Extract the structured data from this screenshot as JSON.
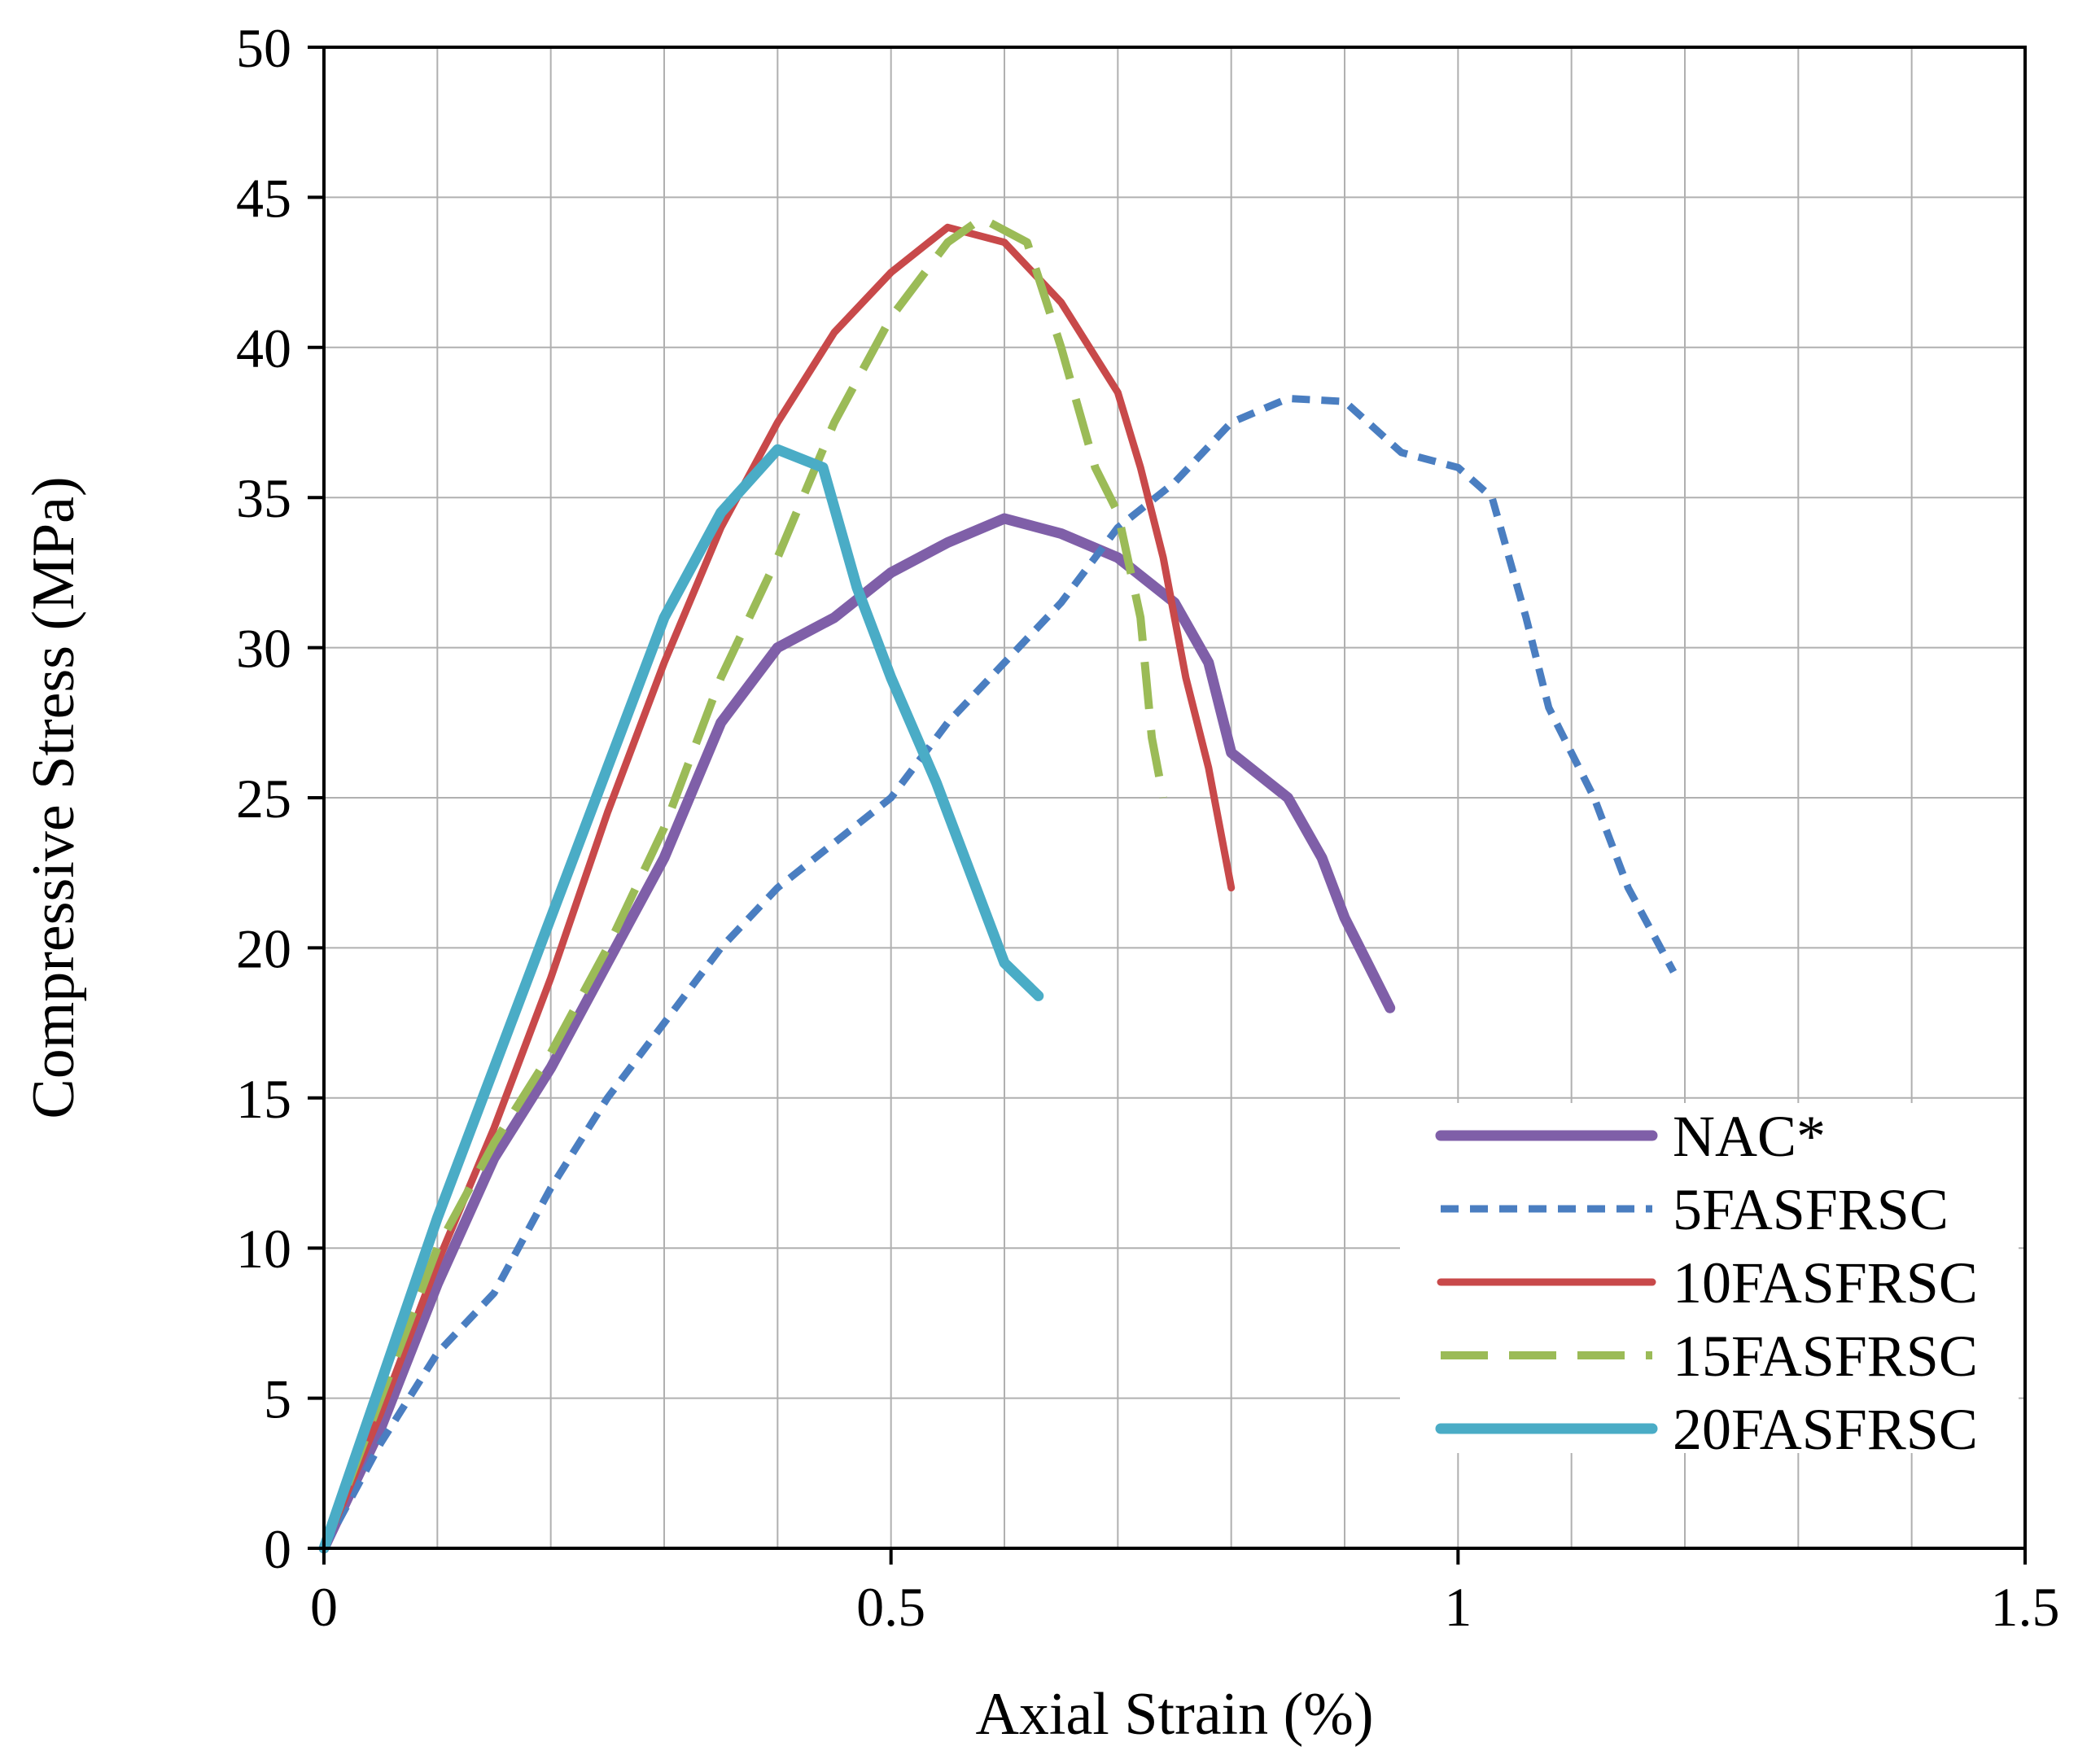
{
  "chart_data": {
    "type": "line",
    "title": "",
    "xlabel": "Axial Strain (%)",
    "ylabel": "Compressive Stress (MPa)",
    "xlim": [
      0,
      1.5
    ],
    "ylim": [
      0,
      50
    ],
    "x_ticks": [
      0,
      0.5,
      1,
      1.5
    ],
    "x_tick_labels": [
      "0",
      "0.5",
      "1",
      "1.5"
    ],
    "x_minor_grid_step": 0.1,
    "y_ticks": [
      0,
      5,
      10,
      15,
      20,
      25,
      30,
      35,
      40,
      45,
      50
    ],
    "y_tick_labels": [
      "0",
      "5",
      "10",
      "15",
      "20",
      "25",
      "30",
      "35",
      "40",
      "45",
      "50"
    ],
    "grid": true,
    "legend_position": "lower-right",
    "series": [
      {
        "name": "NAC*",
        "color": "#7F5FA8",
        "style": "solid-thick",
        "points": [
          [
            0,
            0
          ],
          [
            0.05,
            4
          ],
          [
            0.1,
            8.8
          ],
          [
            0.15,
            13
          ],
          [
            0.2,
            16
          ],
          [
            0.25,
            19.5
          ],
          [
            0.3,
            23
          ],
          [
            0.35,
            27.5
          ],
          [
            0.4,
            30
          ],
          [
            0.45,
            31
          ],
          [
            0.5,
            32.5
          ],
          [
            0.55,
            33.5
          ],
          [
            0.6,
            34.3
          ],
          [
            0.65,
            33.8
          ],
          [
            0.7,
            33
          ],
          [
            0.75,
            31.5
          ],
          [
            0.78,
            29.5
          ],
          [
            0.8,
            26.5
          ],
          [
            0.85,
            25
          ],
          [
            0.88,
            23
          ],
          [
            0.9,
            21
          ],
          [
            0.92,
            19.5
          ],
          [
            0.94,
            18
          ]
        ]
      },
      {
        "name": "5FASFRSC",
        "color": "#4A7EC1",
        "style": "dotted",
        "points": [
          [
            0,
            0
          ],
          [
            0.05,
            3.5
          ],
          [
            0.1,
            6.5
          ],
          [
            0.15,
            8.5
          ],
          [
            0.2,
            12
          ],
          [
            0.25,
            15
          ],
          [
            0.3,
            17.5
          ],
          [
            0.35,
            20
          ],
          [
            0.4,
            22
          ],
          [
            0.5,
            25
          ],
          [
            0.55,
            27.5
          ],
          [
            0.6,
            29.5
          ],
          [
            0.65,
            31.5
          ],
          [
            0.7,
            34
          ],
          [
            0.75,
            35.5
          ],
          [
            0.8,
            37.5
          ],
          [
            0.85,
            38.3
          ],
          [
            0.9,
            38.2
          ],
          [
            0.95,
            36.5
          ],
          [
            1,
            36
          ],
          [
            1.03,
            35
          ],
          [
            1.06,
            31
          ],
          [
            1.08,
            28
          ],
          [
            1.12,
            25
          ],
          [
            1.15,
            22
          ],
          [
            1.19,
            19.2
          ]
        ]
      },
      {
        "name": "10FASFRSC",
        "color": "#C8494A",
        "style": "solid",
        "points": [
          [
            0,
            0
          ],
          [
            0.05,
            4.5
          ],
          [
            0.1,
            9.5
          ],
          [
            0.15,
            14
          ],
          [
            0.2,
            19
          ],
          [
            0.25,
            24.5
          ],
          [
            0.3,
            29.5
          ],
          [
            0.35,
            34
          ],
          [
            0.4,
            37.5
          ],
          [
            0.45,
            40.5
          ],
          [
            0.5,
            42.5
          ],
          [
            0.55,
            44
          ],
          [
            0.6,
            43.5
          ],
          [
            0.65,
            41.5
          ],
          [
            0.7,
            38.5
          ],
          [
            0.72,
            36
          ],
          [
            0.74,
            33
          ],
          [
            0.76,
            29
          ],
          [
            0.78,
            26
          ],
          [
            0.8,
            22
          ]
        ]
      },
      {
        "name": "15FASFRSC",
        "color": "#9BBB57",
        "style": "long-dash",
        "points": [
          [
            0,
            0
          ],
          [
            0.05,
            5
          ],
          [
            0.1,
            10
          ],
          [
            0.15,
            13.5
          ],
          [
            0.2,
            16.5
          ],
          [
            0.25,
            20
          ],
          [
            0.3,
            24
          ],
          [
            0.35,
            29
          ],
          [
            0.4,
            33
          ],
          [
            0.45,
            37.5
          ],
          [
            0.5,
            41
          ],
          [
            0.55,
            43.5
          ],
          [
            0.58,
            44.3
          ],
          [
            0.62,
            43.5
          ],
          [
            0.65,
            40
          ],
          [
            0.68,
            36
          ],
          [
            0.7,
            34.5
          ],
          [
            0.72,
            31
          ],
          [
            0.73,
            27
          ],
          [
            0.74,
            25
          ]
        ]
      },
      {
        "name": "20FASFRSC",
        "color": "#4AACC6",
        "style": "solid-thick",
        "points": [
          [
            0,
            0
          ],
          [
            0.05,
            5.5
          ],
          [
            0.1,
            11
          ],
          [
            0.15,
            16
          ],
          [
            0.2,
            21
          ],
          [
            0.25,
            26
          ],
          [
            0.3,
            31
          ],
          [
            0.35,
            34.5
          ],
          [
            0.4,
            36.6
          ],
          [
            0.44,
            36
          ],
          [
            0.47,
            32
          ],
          [
            0.5,
            29
          ],
          [
            0.54,
            25.5
          ],
          [
            0.58,
            21.5
          ],
          [
            0.6,
            19.5
          ],
          [
            0.63,
            18.4
          ]
        ]
      }
    ]
  }
}
